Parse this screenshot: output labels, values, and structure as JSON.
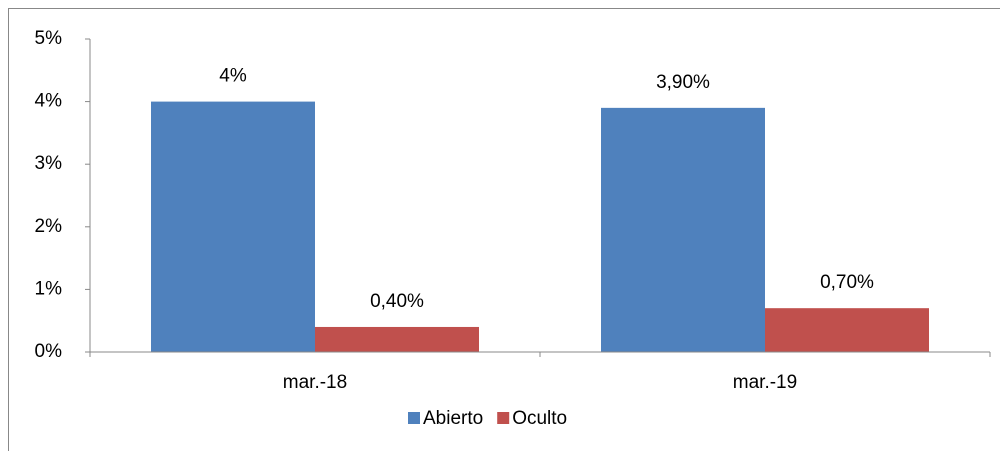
{
  "chart_data": {
    "type": "bar",
    "categories": [
      "mar.-18",
      "mar.-19"
    ],
    "series": [
      {
        "name": "Abierto",
        "color": "#4f81bd",
        "values": [
          4,
          3.9
        ],
        "value_labels": [
          "4%",
          "3,90%"
        ]
      },
      {
        "name": "Oculto",
        "color": "#c0504d",
        "values": [
          0.4,
          0.7
        ],
        "value_labels": [
          "0,40%",
          "0,70%"
        ]
      }
    ],
    "ylim": [
      0,
      5
    ],
    "yticks": [
      {
        "value": 0,
        "label": "0%"
      },
      {
        "value": 1,
        "label": "1%"
      },
      {
        "value": 2,
        "label": "2%"
      },
      {
        "value": 3,
        "label": "3%"
      },
      {
        "value": 4,
        "label": "4%"
      },
      {
        "value": 5,
        "label": "5%"
      }
    ],
    "legend": "bottom"
  }
}
